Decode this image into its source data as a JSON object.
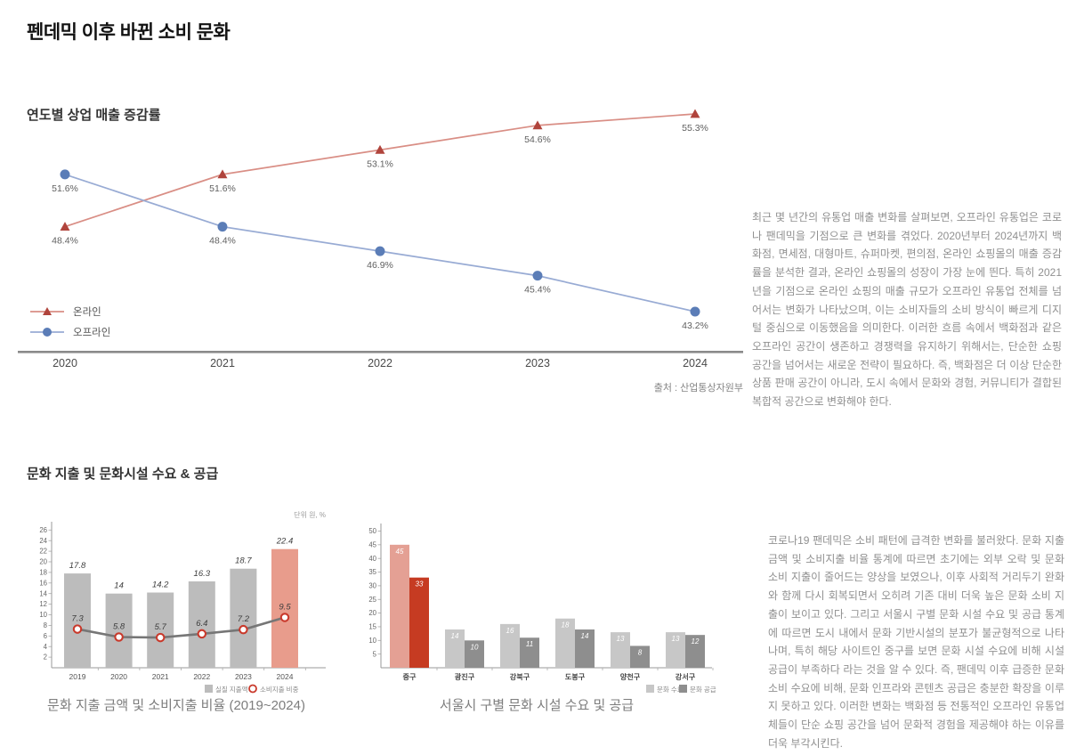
{
  "page": {
    "title": "펜데믹 이후 바뀐 소비 문화"
  },
  "section1": {
    "subtitle": "연도별 상업 매출 증감률",
    "source": "출처 : 산업통상자원부",
    "paragraph": "최근 몇 년간의 유통업 매출 변화를 살펴보면, 오프라인 유통업은 코로나 팬데믹을 기점으로 큰 변화를 겪었다. 2020년부터 2024년까지 백화점, 면세점, 대형마트, 슈퍼마켓, 편의점, 온라인 쇼핑몰의 매출 증감률을 분석한 결과, 온라인 쇼핑몰의 성장이 가장 눈에 띈다. 특히 2021년을 기점으로 온라인 쇼핑의 매출 규모가 오프라인 유통업 전체를 넘어서는 변화가 나타났으며, 이는 소비자들의 소비 방식이 빠르게 디지털 중심으로 이동했음을 의미한다. 이러한 흐름 속에서 백화점과 같은 오프라인 공간이 생존하고 경쟁력을 유지하기 위해서는, 단순한 쇼핑 공간을 넘어서는 새로운 전략이 필요하다. 즉, 백화점은 더 이상 단순한 상품 판매 공간이 아니라, 도시 속에서 문화와 경험, 커뮤니티가 결합된 복합적 공간으로 변화해야 한다."
  },
  "section2": {
    "subtitle": "문화 지출 및 문화시설 수요 & 공급",
    "paragraph": "코로나19 팬데믹은 소비 패턴에 급격한 변화를 불러왔다. 문화 지출 금액 및 소비지출 비율 통계에 따르면 초기에는 외부 오락 및 문화 소비 지출이 줄어드는 양상을 보였으나, 이후 사회적 거리두기 완화와 함께 다시 회복되면서 오히려 기존 대비 더욱 높은 문화 소비 지출이 보이고 있다. 그리고 서울시 구별 문화 시설 수요 및 공급 통계에 따르면 도시 내에서 문화 기반시설의 분포가 불균형적으로 나타나며, 특히 해당 사이트인 중구를 보면 문화 시설 수요에 비해 시설 공급이 부족하다 라는 것을 알 수 있다. 즉, 팬데믹 이후 급증한 문화 소비 수요에 비해, 문화 인프라와 콘텐츠 공급은 충분한 확장을 이루지 못하고 있다. 이러한 변화는 백화점 등 전통적인 오프라인 유통업체들이 단순 쇼핑 공간을 넘어 문화적 경험을 제공해야 하는 이유를 더욱 부각시킨다."
  },
  "chart_data": [
    {
      "id": "yearly-retail-sales-change",
      "type": "line",
      "title": "연도별 상업 매출 증감률",
      "categories": [
        "2020",
        "2021",
        "2022",
        "2023",
        "2024"
      ],
      "series": [
        {
          "name": "온라인",
          "marker": "triangle",
          "marker_color": "#b0443c",
          "line_color": "#d98e85",
          "values": [
            48.4,
            51.6,
            53.1,
            54.6,
            55.3
          ]
        },
        {
          "name": "오프라인",
          "marker": "circle",
          "marker_color": "#5b7db7",
          "line_color": "#98abd4",
          "values": [
            51.6,
            48.4,
            46.9,
            45.4,
            43.2
          ]
        }
      ],
      "value_suffix": "%",
      "legend_position": "bottom-left",
      "axis_color": "#8a8a8a",
      "grid": false
    },
    {
      "id": "culture-spending",
      "type": "bar-line",
      "caption": "문화 지출 금액 및 소비지출 비율 (2019~2024)",
      "unit_label": "단위 원, %",
      "categories": [
        "2019",
        "2020",
        "2021",
        "2022",
        "2023",
        "2024"
      ],
      "bar_series": {
        "name": "실질 지출액",
        "values": [
          17.8,
          14,
          14.2,
          16.3,
          18.7,
          22.4
        ],
        "color": "#bcbcbc",
        "highlight_index": 5,
        "highlight_color": "#e89c8c"
      },
      "line_series": {
        "name": "소비지출 비중",
        "values": [
          7.3,
          5.8,
          5.7,
          6.4,
          7.2,
          9.5
        ],
        "color": "#767676",
        "marker_color": "#c9392b"
      },
      "yticks": [
        2,
        4,
        6,
        8,
        10,
        12,
        14,
        16,
        18,
        20,
        22,
        24,
        26
      ],
      "ylim": [
        0,
        27
      ],
      "legend_position": "bottom-right"
    },
    {
      "id": "seoul-district-culture-facilities",
      "type": "grouped-bar",
      "caption": "서울시 구별 문화 시설 수요 및 공급",
      "categories": [
        "중구",
        "광진구",
        "강북구",
        "도봉구",
        "양천구",
        "강서구"
      ],
      "series": [
        {
          "name": "문화 수요",
          "values": [
            45,
            14,
            16,
            18,
            13,
            13
          ],
          "color": "#c7c7c7",
          "highlight_color": "#e4a094"
        },
        {
          "name": "문화 공급",
          "values": [
            33,
            10,
            11,
            14,
            8,
            12
          ],
          "color": "#8e8e8e",
          "highlight_color": "#c63b22"
        }
      ],
      "highlight_index": 0,
      "yticks": [
        5,
        10,
        15,
        20,
        25,
        30,
        35,
        40,
        45,
        50
      ],
      "ylim": [
        0,
        52
      ],
      "legend_position": "bottom-right"
    }
  ]
}
